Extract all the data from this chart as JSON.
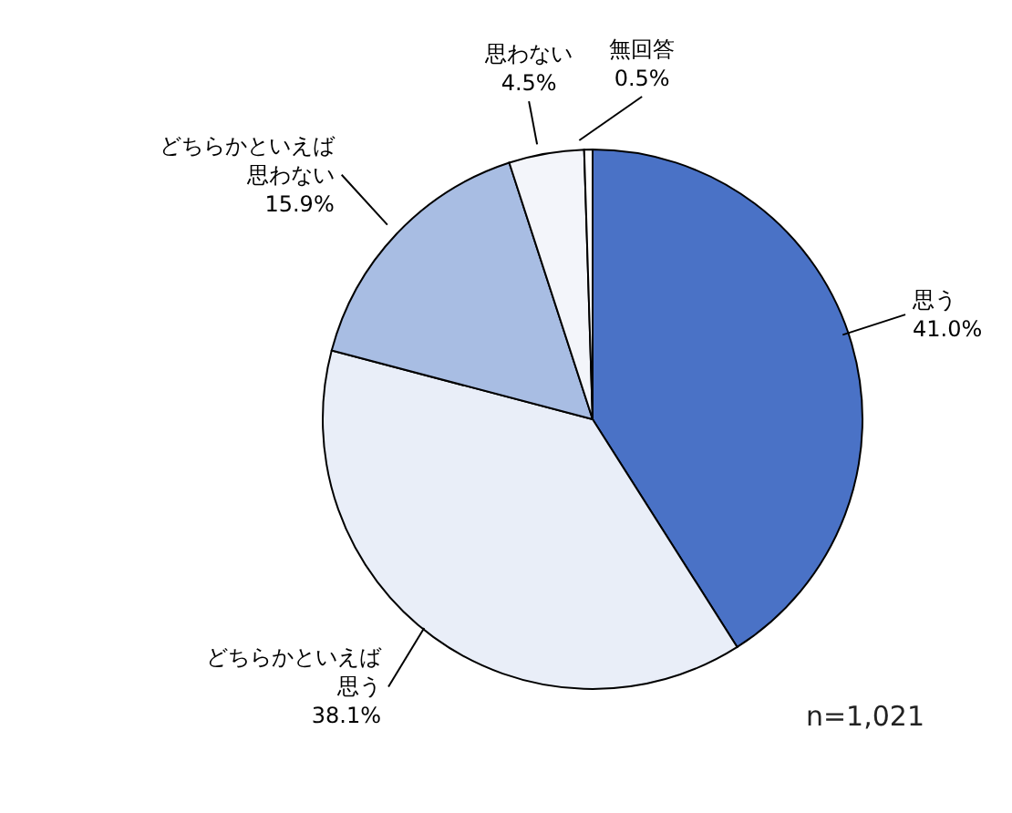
{
  "chart_data": {
    "type": "pie",
    "categories": [
      "思う",
      "どちらかといえば思う",
      "どちらかといえば思わない",
      "思わない",
      "無回答"
    ],
    "values": [
      41.0,
      38.1,
      15.9,
      4.5,
      0.5
    ],
    "value_labels": [
      "41.0%",
      "38.1%",
      "15.9%",
      "4.5%",
      "0.5%"
    ],
    "colors": [
      "#4a72c6",
      "#e9eef8",
      "#a8bde3",
      "#f3f5fa",
      "#ffffff"
    ],
    "annotations": [
      "n=1,021"
    ],
    "legend": false
  }
}
